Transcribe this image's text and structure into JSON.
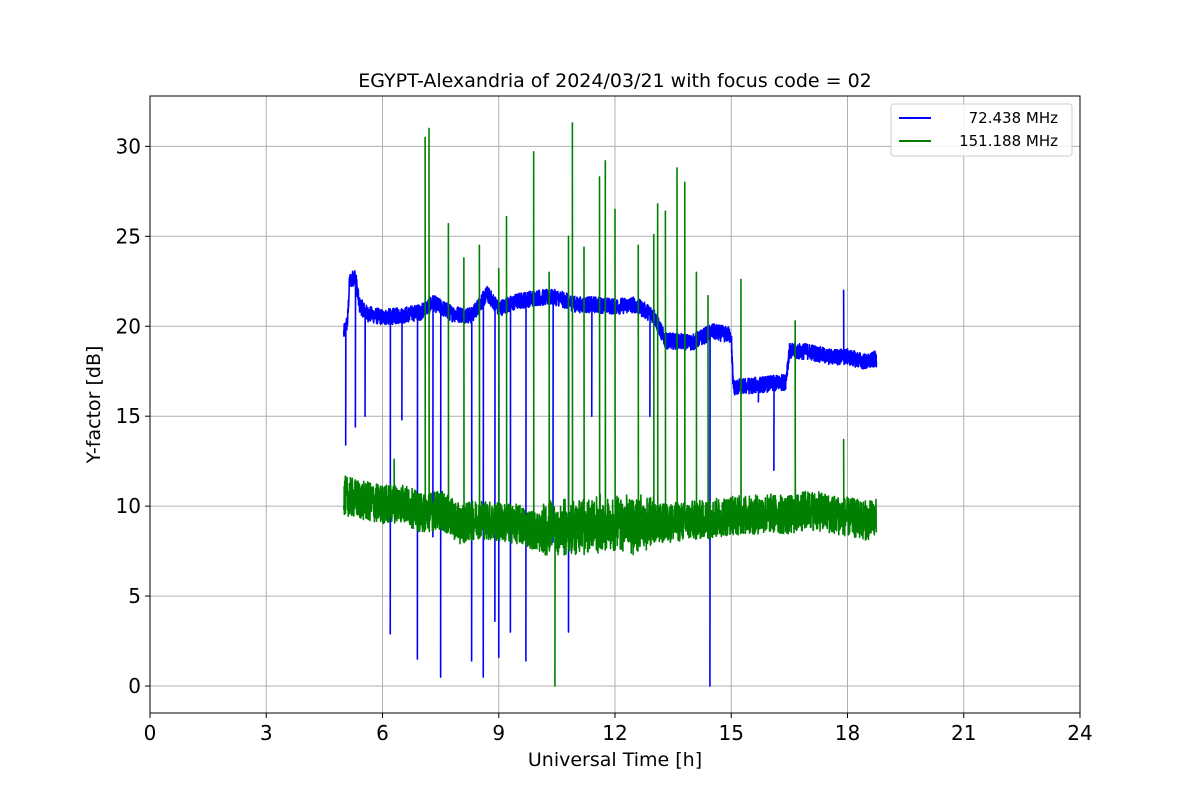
{
  "chart_data": {
    "type": "line",
    "title": "EGYPT-Alexandria of 2024/03/21 with focus code = 02",
    "xlabel": "Universal Time [h]",
    "ylabel": "Y-factor [dB]",
    "xlim": [
      0,
      24
    ],
    "ylim": [
      -1.5,
      32.8
    ],
    "xticks": [
      0,
      3,
      6,
      9,
      12,
      15,
      18,
      21,
      24
    ],
    "yticks": [
      0,
      5,
      10,
      15,
      20,
      25,
      30
    ],
    "grid": true,
    "legend_position": "top-right",
    "series": [
      {
        "name": "72.438 MHz",
        "color": "#0000ff",
        "base": [
          [
            5.0,
            19.6
          ],
          [
            5.1,
            20.3
          ],
          [
            5.15,
            22.5
          ],
          [
            5.3,
            22.8
          ],
          [
            5.4,
            21.2
          ],
          [
            5.6,
            20.7
          ],
          [
            6.0,
            20.5
          ],
          [
            6.5,
            20.6
          ],
          [
            7.0,
            20.8
          ],
          [
            7.3,
            21.3
          ],
          [
            7.8,
            20.7
          ],
          [
            8.3,
            20.6
          ],
          [
            8.7,
            21.8
          ],
          [
            9.0,
            21.0
          ],
          [
            9.5,
            21.4
          ],
          [
            10.0,
            21.6
          ],
          [
            10.5,
            21.6
          ],
          [
            11.0,
            21.2
          ],
          [
            11.5,
            21.2
          ],
          [
            12.0,
            21.1
          ],
          [
            12.5,
            21.2
          ],
          [
            13.0,
            20.6
          ],
          [
            13.3,
            19.2
          ],
          [
            14.0,
            19.1
          ],
          [
            14.5,
            19.7
          ],
          [
            15.0,
            19.5
          ],
          [
            15.05,
            16.6
          ],
          [
            16.0,
            16.8
          ],
          [
            16.4,
            16.9
          ],
          [
            16.5,
            18.6
          ],
          [
            17.0,
            18.6
          ],
          [
            17.5,
            18.3
          ],
          [
            18.0,
            18.3
          ],
          [
            18.5,
            18.0
          ],
          [
            18.75,
            18.2
          ]
        ],
        "spikes": [
          [
            5.05,
            13.4
          ],
          [
            5.3,
            14.4
          ],
          [
            5.55,
            15.0
          ],
          [
            6.2,
            2.9
          ],
          [
            6.5,
            14.8
          ],
          [
            6.9,
            1.5
          ],
          [
            7.3,
            8.3
          ],
          [
            7.5,
            0.5
          ],
          [
            8.3,
            1.4
          ],
          [
            8.6,
            0.5
          ],
          [
            8.9,
            3.6
          ],
          [
            9.0,
            1.6
          ],
          [
            9.3,
            3.0
          ],
          [
            9.7,
            1.4
          ],
          [
            10.4,
            8.0
          ],
          [
            10.8,
            3.0
          ],
          [
            11.4,
            15.0
          ],
          [
            12.9,
            15.0
          ],
          [
            14.45,
            0.0
          ],
          [
            15.7,
            15.8
          ],
          [
            16.1,
            12.0
          ],
          [
            17.9,
            22.0
          ]
        ]
      },
      {
        "name": "151.188 MHz",
        "color": "#008000",
        "base": [
          [
            5.0,
            10.6
          ],
          [
            5.5,
            10.3
          ],
          [
            6.0,
            10.1
          ],
          [
            6.5,
            10.2
          ],
          [
            7.0,
            9.6
          ],
          [
            7.5,
            9.8
          ],
          [
            8.0,
            9.0
          ],
          [
            8.5,
            9.3
          ],
          [
            9.0,
            9.1
          ],
          [
            9.5,
            9.0
          ],
          [
            10.0,
            8.6
          ],
          [
            10.5,
            8.7
          ],
          [
            11.0,
            8.8
          ],
          [
            11.5,
            8.9
          ],
          [
            12.0,
            8.9
          ],
          [
            12.5,
            9.0
          ],
          [
            13.0,
            9.0
          ],
          [
            13.5,
            9.1
          ],
          [
            14.0,
            9.2
          ],
          [
            14.5,
            9.3
          ],
          [
            15.0,
            9.5
          ],
          [
            15.5,
            9.5
          ],
          [
            16.0,
            9.6
          ],
          [
            16.5,
            9.5
          ],
          [
            17.0,
            9.8
          ],
          [
            17.5,
            9.6
          ],
          [
            18.0,
            9.4
          ],
          [
            18.5,
            9.2
          ],
          [
            18.75,
            9.3
          ]
        ],
        "spikes": [
          [
            6.3,
            12.6
          ],
          [
            7.1,
            30.5
          ],
          [
            7.2,
            31.0
          ],
          [
            7.7,
            25.7
          ],
          [
            8.1,
            23.8
          ],
          [
            8.5,
            24.5
          ],
          [
            9.0,
            23.2
          ],
          [
            9.2,
            26.1
          ],
          [
            9.9,
            29.7
          ],
          [
            10.3,
            23.0
          ],
          [
            10.45,
            0.0
          ],
          [
            10.8,
            25.0
          ],
          [
            10.9,
            31.3
          ],
          [
            11.2,
            24.4
          ],
          [
            11.6,
            28.3
          ],
          [
            11.75,
            29.2
          ],
          [
            12.0,
            26.5
          ],
          [
            12.6,
            24.5
          ],
          [
            13.0,
            25.1
          ],
          [
            13.1,
            26.8
          ],
          [
            13.3,
            26.4
          ],
          [
            13.6,
            28.8
          ],
          [
            13.8,
            28.0
          ],
          [
            14.1,
            23.0
          ],
          [
            14.4,
            21.7
          ],
          [
            15.25,
            22.6
          ],
          [
            16.65,
            20.3
          ],
          [
            17.9,
            13.7
          ]
        ]
      }
    ]
  }
}
